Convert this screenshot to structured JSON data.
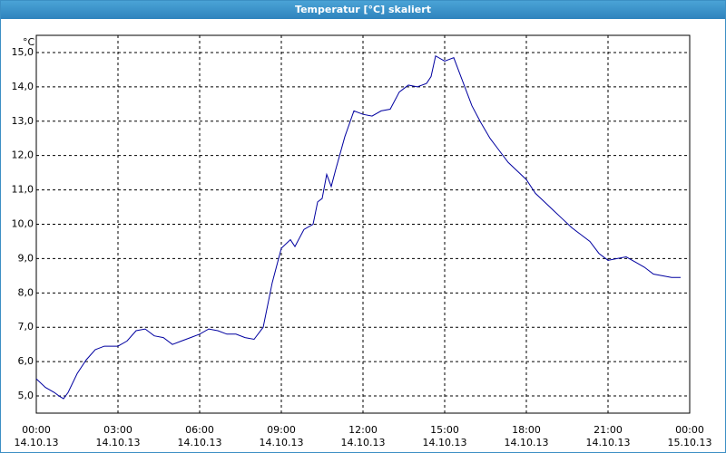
{
  "chart_data": {
    "type": "line",
    "title": "Temperatur [°C] skaliert",
    "y_unit": "°C",
    "x": [
      0,
      20,
      40,
      50,
      60,
      70,
      90,
      110,
      130,
      150,
      180,
      200,
      220,
      240,
      260,
      280,
      300,
      320,
      340,
      360,
      380,
      400,
      420,
      440,
      460,
      480,
      500,
      520,
      540,
      560,
      570,
      590,
      610,
      620,
      630,
      640,
      650,
      660,
      680,
      700,
      720,
      740,
      760,
      780,
      800,
      820,
      840,
      860,
      870,
      880,
      900,
      920,
      940,
      960,
      980,
      1000,
      1020,
      1040,
      1060,
      1080,
      1100,
      1120,
      1140,
      1160,
      1180,
      1200,
      1220,
      1240,
      1260,
      1280,
      1300,
      1320,
      1340,
      1360,
      1380,
      1400,
      1420
    ],
    "series": [
      {
        "name": "Temperatur",
        "color": "#0000a0",
        "values": [
          5.5,
          5.25,
          5.1,
          5.0,
          4.92,
          5.1,
          5.65,
          6.05,
          6.35,
          6.45,
          6.45,
          6.6,
          6.9,
          6.95,
          6.75,
          6.7,
          6.5,
          6.6,
          6.7,
          6.8,
          6.95,
          6.9,
          6.8,
          6.8,
          6.7,
          6.65,
          7.0,
          8.3,
          9.3,
          9.55,
          9.35,
          9.85,
          10.0,
          10.65,
          10.75,
          11.45,
          11.1,
          11.6,
          12.55,
          13.3,
          13.2,
          13.15,
          13.3,
          13.35,
          13.85,
          14.05,
          14.0,
          14.1,
          14.3,
          14.9,
          14.75,
          14.85,
          14.15,
          13.45,
          12.95,
          12.5,
          12.15,
          11.8,
          11.55,
          11.3,
          10.9,
          10.65,
          10.4,
          10.15,
          9.9,
          9.7,
          9.5,
          9.15,
          8.95,
          9.0,
          9.05,
          8.9,
          8.75,
          8.55,
          8.5,
          8.45,
          8.45
        ]
      }
    ],
    "xlim": [
      0,
      1440
    ],
    "xticks": [
      {
        "value": 0,
        "label": "00:00\n14.10.13"
      },
      {
        "value": 180,
        "label": "03:00\n14.10.13"
      },
      {
        "value": 360,
        "label": "06:00\n14.10.13"
      },
      {
        "value": 540,
        "label": "09:00\n14.10.13"
      },
      {
        "value": 720,
        "label": "12:00\n14.10.13"
      },
      {
        "value": 900,
        "label": "15:00\n14.10.13"
      },
      {
        "value": 1080,
        "label": "18:00\n14.10.13"
      },
      {
        "value": 1260,
        "label": "21:00\n14.10.13"
      },
      {
        "value": 1440,
        "label": "00:00\n15.10.13"
      }
    ],
    "ylim": [
      4.5,
      15.5
    ],
    "yticks": [
      {
        "value": 5,
        "label": "5,0"
      },
      {
        "value": 6,
        "label": "6,0"
      },
      {
        "value": 7,
        "label": "7,0"
      },
      {
        "value": 8,
        "label": "8,0"
      },
      {
        "value": 9,
        "label": "9,0"
      },
      {
        "value": 10,
        "label": "10,0"
      },
      {
        "value": 11,
        "label": "11,0"
      },
      {
        "value": 12,
        "label": "12,0"
      },
      {
        "value": 13,
        "label": "13,0"
      },
      {
        "value": 14,
        "label": "14,0"
      },
      {
        "value": 15,
        "label": "15,0"
      }
    ],
    "grid": true
  }
}
